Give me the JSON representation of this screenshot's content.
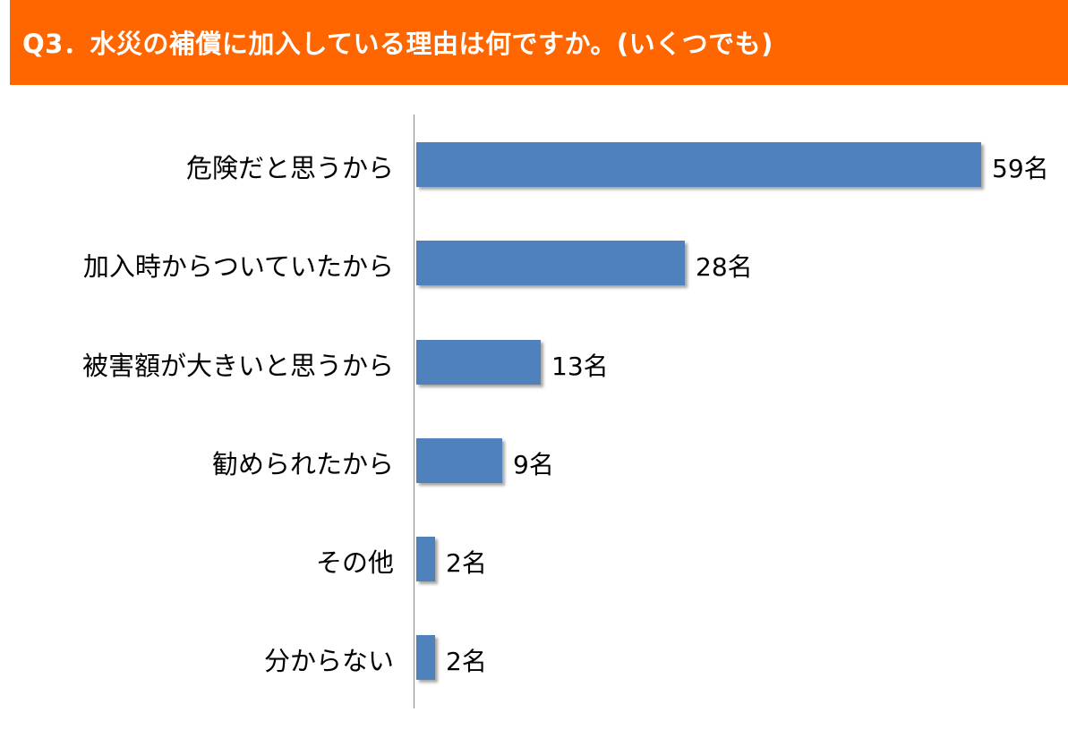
{
  "title": "Q3．水災の補償に加入している理由は何ですか。(いくつでも)",
  "colors": {
    "header": "#ff6600",
    "bar": "#4f81bd",
    "axis": "#888888"
  },
  "chart_data": {
    "type": "bar",
    "orientation": "horizontal",
    "title": "Q3．水災の補償に加入している理由は何ですか。(いくつでも)",
    "categories": [
      "危険だと思うから",
      "加入時からついていたから",
      "被害額が大きいと思うから",
      "勧められたから",
      "その他",
      "分からない"
    ],
    "values": [
      59,
      28,
      13,
      9,
      2,
      2
    ],
    "unit": "名",
    "value_labels": [
      "59名",
      "28名",
      "13名",
      "9名",
      "2名",
      "2名"
    ],
    "xlabel": "",
    "ylabel": "",
    "grid": false,
    "legend": null
  },
  "rows": [
    {
      "label": "危険だと思うから",
      "value_label": "59名"
    },
    {
      "label": "加入時からついていたから",
      "value_label": "28名"
    },
    {
      "label": "被害額が大きいと思うから",
      "value_label": "13名"
    },
    {
      "label": "勧められたから",
      "value_label": "9名"
    },
    {
      "label": "その他",
      "value_label": "2名"
    },
    {
      "label": "分からない",
      "value_label": "2名"
    }
  ]
}
